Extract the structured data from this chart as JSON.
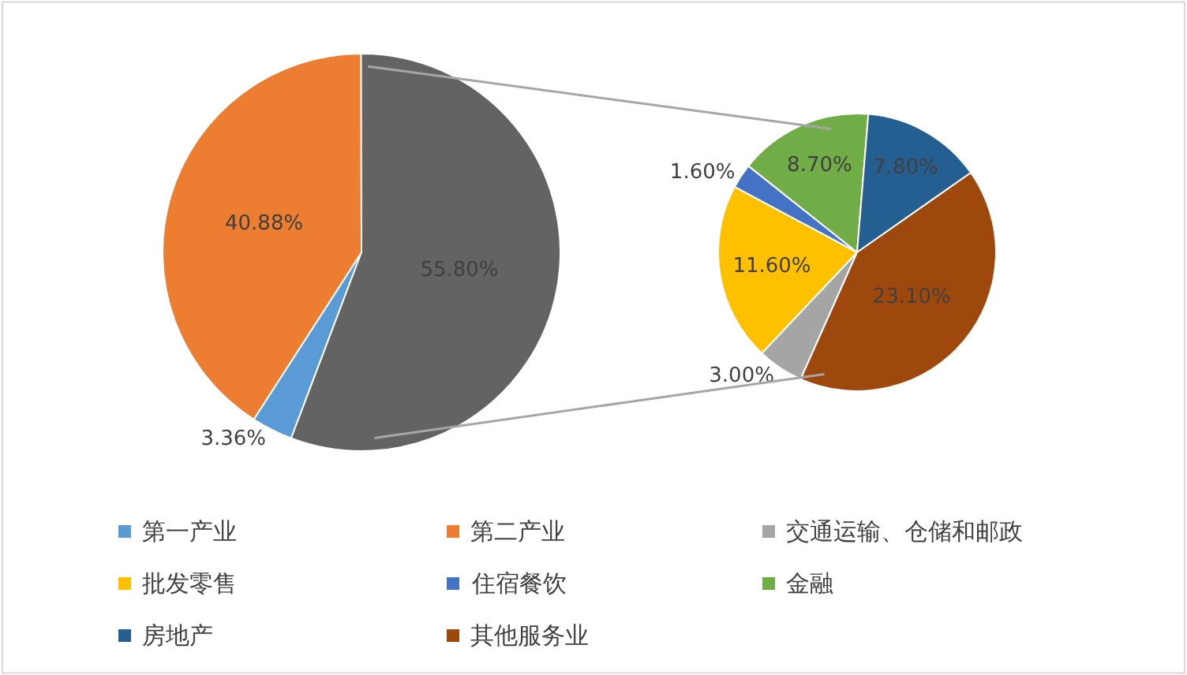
{
  "chart_data": [
    {
      "type": "pie",
      "categories": [
        "第一产业",
        "第二产业",
        null
      ],
      "values": [
        3.36,
        40.88,
        55.8
      ],
      "colors": [
        "#5b9bd5",
        "#ed7d31",
        "#636363"
      ],
      "value_labels": [
        "3.36%",
        "40.88%",
        "55.80%"
      ],
      "legend": "bottom"
    },
    {
      "type": "pie",
      "categories": [
        "交通运输、仓储和邮政",
        "批发零售",
        "住宿餐饮",
        "金融",
        "房地产",
        "其他服务业"
      ],
      "values": [
        3.0,
        11.6,
        1.6,
        8.7,
        7.8,
        23.1
      ],
      "colors": [
        "#a5a5a5",
        "#ffc000",
        "#4472c4",
        "#70ad47",
        "#255e91",
        "#9e480e"
      ],
      "value_labels": [
        "3.00%",
        "11.60%",
        "1.60%",
        "8.70%",
        "7.80%",
        "23.10%"
      ],
      "legend": "bottom"
    }
  ]
}
